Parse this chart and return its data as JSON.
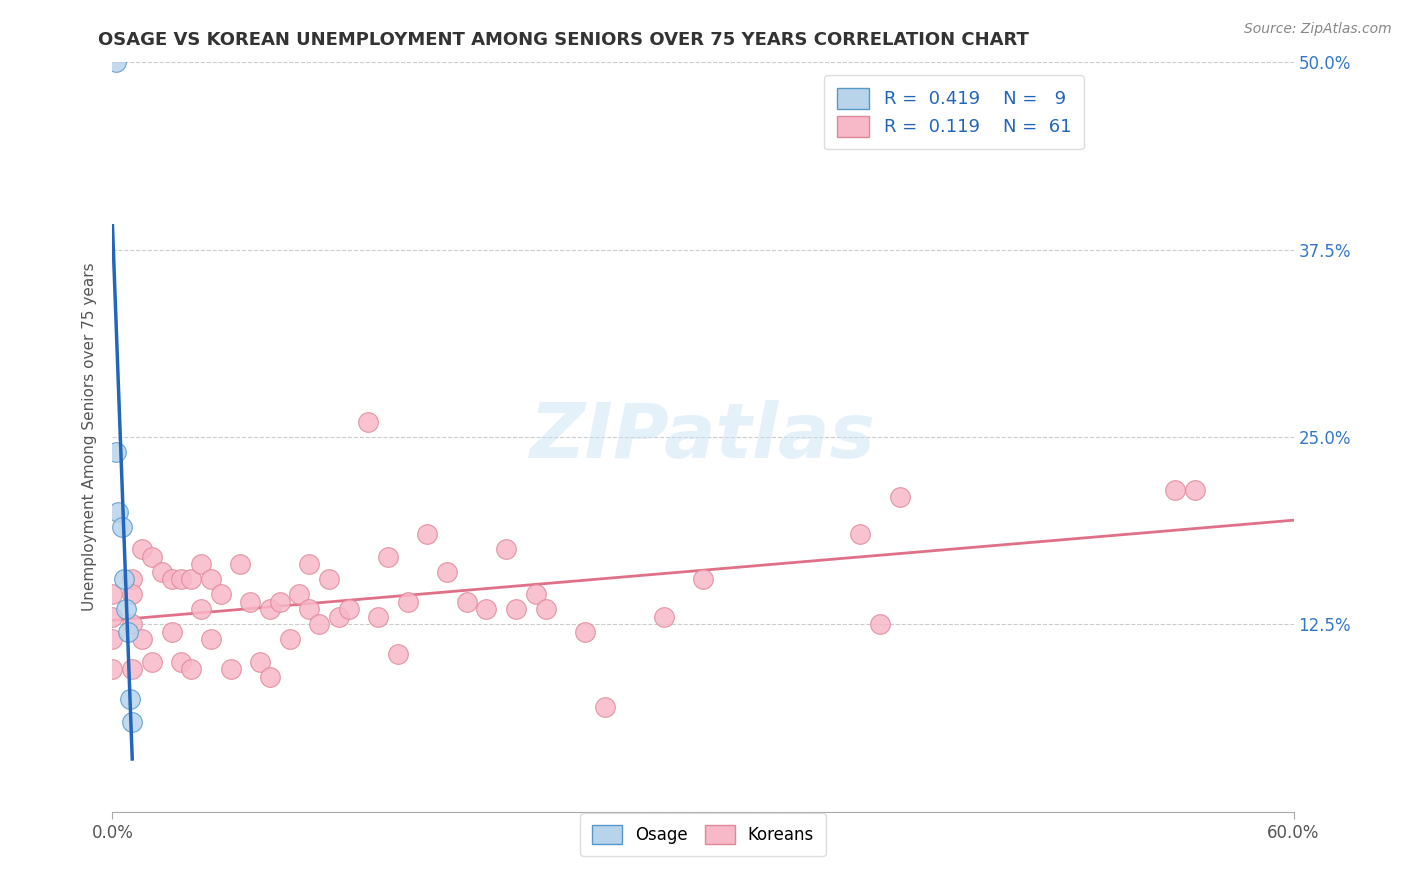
{
  "title": "OSAGE VS KOREAN UNEMPLOYMENT AMONG SENIORS OVER 75 YEARS CORRELATION CHART",
  "source": "Source: ZipAtlas.com",
  "ylabel": "Unemployment Among Seniors over 75 years",
  "xlim": [
    0.0,
    0.6
  ],
  "ylim": [
    0.0,
    0.5
  ],
  "xticks": [
    0.0,
    0.6
  ],
  "xticklabels": [
    "0.0%",
    "60.0%"
  ],
  "yticks": [
    0.0,
    0.125,
    0.25,
    0.375,
    0.5
  ],
  "right_yticklabels": [
    "",
    "12.5%",
    "25.0%",
    "37.5%",
    "50.0%"
  ],
  "osage_R": 0.419,
  "osage_N": 9,
  "korean_R": 0.119,
  "korean_N": 61,
  "osage_color": "#b8d4ea",
  "osage_edge_color": "#5599cc",
  "osage_line_color": "#2266bb",
  "korean_color": "#f7b8c8",
  "korean_edge_color": "#e08898",
  "korean_line_color": "#e07088",
  "watermark": "ZIPatlas",
  "osage_x": [
    0.002,
    0.002,
    0.003,
    0.005,
    0.006,
    0.007,
    0.008,
    0.009,
    0.01
  ],
  "osage_y": [
    0.5,
    0.24,
    0.2,
    0.19,
    0.155,
    0.135,
    0.12,
    0.075,
    0.06
  ],
  "korean_x": [
    0.0,
    0.0,
    0.0,
    0.0,
    0.01,
    0.01,
    0.01,
    0.01,
    0.015,
    0.015,
    0.02,
    0.02,
    0.025,
    0.03,
    0.03,
    0.035,
    0.035,
    0.04,
    0.04,
    0.045,
    0.045,
    0.05,
    0.05,
    0.055,
    0.06,
    0.065,
    0.07,
    0.075,
    0.08,
    0.08,
    0.085,
    0.09,
    0.095,
    0.1,
    0.1,
    0.105,
    0.11,
    0.115,
    0.12,
    0.13,
    0.135,
    0.14,
    0.145,
    0.15,
    0.16,
    0.17,
    0.18,
    0.19,
    0.2,
    0.205,
    0.215,
    0.22,
    0.24,
    0.25,
    0.28,
    0.3,
    0.38,
    0.39,
    0.4,
    0.54,
    0.55
  ],
  "korean_y": [
    0.145,
    0.13,
    0.115,
    0.095,
    0.155,
    0.145,
    0.125,
    0.095,
    0.175,
    0.115,
    0.17,
    0.1,
    0.16,
    0.155,
    0.12,
    0.155,
    0.1,
    0.155,
    0.095,
    0.165,
    0.135,
    0.155,
    0.115,
    0.145,
    0.095,
    0.165,
    0.14,
    0.1,
    0.135,
    0.09,
    0.14,
    0.115,
    0.145,
    0.165,
    0.135,
    0.125,
    0.155,
    0.13,
    0.135,
    0.26,
    0.13,
    0.17,
    0.105,
    0.14,
    0.185,
    0.16,
    0.14,
    0.135,
    0.175,
    0.135,
    0.145,
    0.135,
    0.12,
    0.07,
    0.13,
    0.155,
    0.185,
    0.125,
    0.21,
    0.215,
    0.215
  ]
}
